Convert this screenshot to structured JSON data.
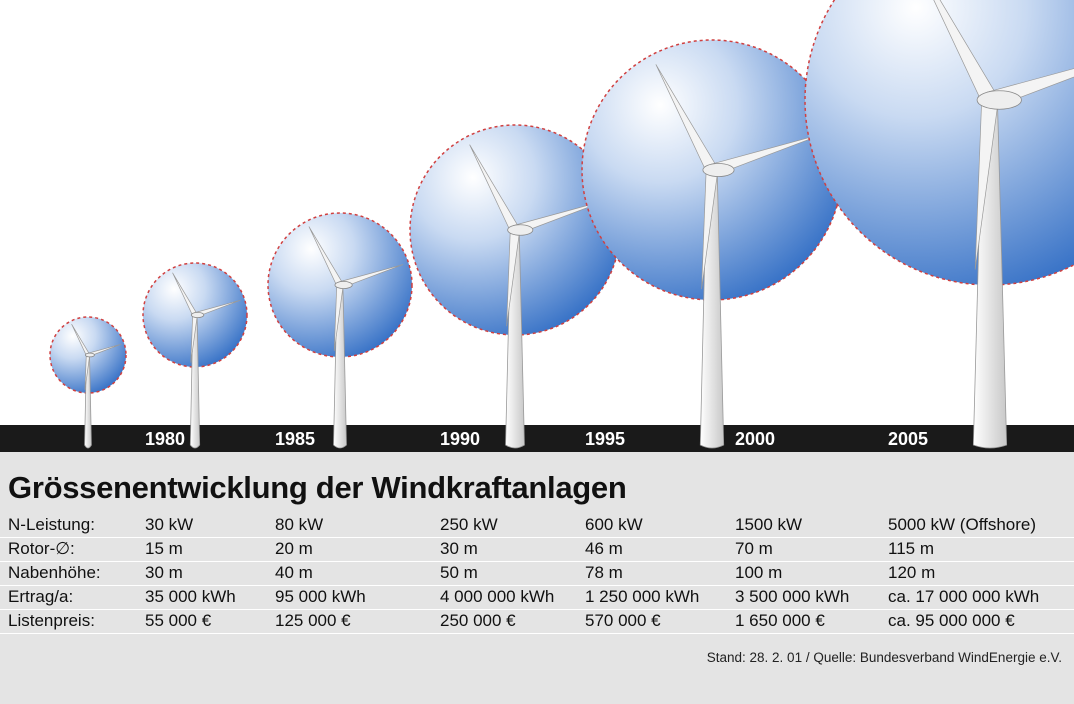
{
  "illustration": {
    "years": [
      "1980",
      "1985",
      "1990",
      "1995",
      "2000",
      "2005"
    ]
  },
  "title": "Grössenentwicklung der Windkraftanlagen",
  "table": {
    "rows": [
      [
        "N-Leistung:",
        "30 kW",
        "80 kW",
        "250 kW",
        "600 kW",
        "1500 kW",
        "5000 kW (Offshore)"
      ],
      [
        "Rotor-∅:",
        "15 m",
        "20 m",
        "30 m",
        "46 m",
        "70 m",
        "115 m"
      ],
      [
        "Nabenhöhe:",
        "30 m",
        "40 m",
        "50 m",
        "78 m",
        "100 m",
        "120 m"
      ],
      [
        "Ertrag/a:",
        "35 000 kWh",
        "95 000 kWh",
        "4 000 000 kWh",
        "1 250 000 kWh",
        "3 500 000 kWh",
        "ca. 17 000 000 kWh"
      ],
      [
        "Listenpreis:",
        "55 000 €",
        "125 000 €",
        "250 000 €",
        "570 000 €",
        "1 650 000 €",
        "ca. 95 000 000 €"
      ]
    ]
  },
  "source": "Stand: 28. 2. 01 / Quelle: Bundesverband WindEnergie e.V."
}
